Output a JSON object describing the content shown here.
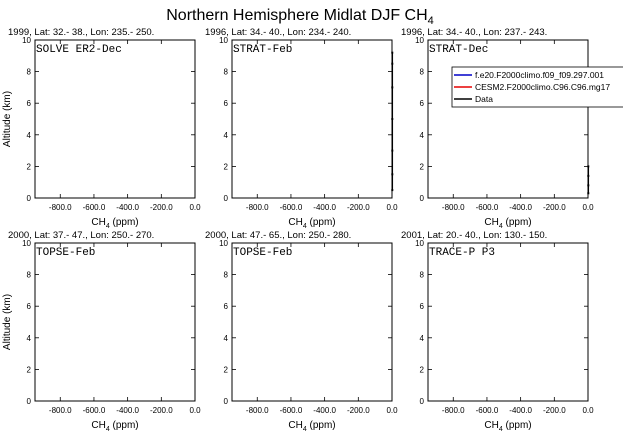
{
  "title": {
    "main": "Northern Hemisphere Midlat DJF CH",
    "sub": "4"
  },
  "legend": {
    "entries": [
      {
        "label": "f.e20.F2000climo.f09_f09.297.001",
        "color": "#0000c8"
      },
      {
        "label": "CESM2.F2000climo.C96.C96.mg17",
        "color": "#e60000"
      },
      {
        "label": "Data",
        "color": "#000000"
      }
    ]
  },
  "chart_data": [
    {
      "type": "line",
      "title": "1999, Lat: 32.- 38., Lon: 235.- 250.",
      "panel_label": "SOLVE ER2-Dec",
      "xlabel": "CH4 (ppm)",
      "ylabel": "Altitude (km)",
      "xlim": [
        -950,
        0
      ],
      "ylim": [
        0,
        10
      ],
      "xticks": [
        -800,
        -600,
        -400,
        -200,
        0
      ],
      "xtick_labels": [
        "-800.0",
        "-600.0",
        "-400.0",
        "-200.0",
        "0.0"
      ],
      "yticks": [
        0,
        2,
        4,
        6,
        8,
        10
      ],
      "ytick_labels": [
        "0",
        "2",
        "4",
        "6",
        "8",
        "10"
      ],
      "series": []
    },
    {
      "type": "line",
      "title": "1996, Lat: 34.- 40., Lon: 234.- 240.",
      "panel_label": "STRAT-Feb",
      "xlabel": "CH4 (ppm)",
      "ylabel": "",
      "xlim": [
        -950,
        0
      ],
      "ylim": [
        0,
        10
      ],
      "xticks": [
        -800,
        -600,
        -400,
        -200,
        0
      ],
      "xtick_labels": [
        "-800.0",
        "-600.0",
        "-400.0",
        "-200.0",
        "0.0"
      ],
      "yticks": [
        0,
        2,
        4,
        6,
        8,
        10
      ],
      "ytick_labels": [
        "0",
        "2",
        "4",
        "6",
        "8",
        "10"
      ],
      "series": [
        {
          "name": "Data",
          "color": "#000000",
          "x": [
            1.7,
            1.7,
            1.7,
            1.65,
            1.6,
            1.55,
            1.5
          ],
          "y": [
            0.5,
            1.5,
            3,
            5,
            7,
            8.5,
            9.2
          ]
        }
      ]
    },
    {
      "type": "line",
      "title": "1996, Lat: 34.- 40., Lon: 237.- 243.",
      "panel_label": "STRAT-Dec",
      "xlabel": "CH4 (ppm)",
      "ylabel": "",
      "xlim": [
        -950,
        0
      ],
      "ylim": [
        0,
        10
      ],
      "xticks": [
        -800,
        -600,
        -400,
        -200,
        0
      ],
      "xtick_labels": [
        "-800.0",
        "-600.0",
        "-400.0",
        "-200.0",
        "0.0"
      ],
      "yticks": [
        0,
        2,
        4,
        6,
        8,
        10
      ],
      "ytick_labels": [
        "0",
        "2",
        "4",
        "6",
        "8",
        "10"
      ],
      "series": [
        {
          "name": "Data",
          "color": "#000000",
          "x": [
            1.7,
            1.7,
            1.7,
            1.7
          ],
          "y": [
            0.3,
            0.8,
            1.4,
            2.0
          ]
        }
      ]
    },
    {
      "type": "line",
      "title": "2000, Lat: 37.- 47., Lon: 250.- 270.",
      "panel_label": "TOPSE-Feb",
      "xlabel": "CH4 (ppm)",
      "ylabel": "Altitude (km)",
      "xlim": [
        -950,
        0
      ],
      "ylim": [
        0,
        10
      ],
      "xticks": [
        -800,
        -600,
        -400,
        -200,
        0
      ],
      "xtick_labels": [
        "-800.0",
        "-600.0",
        "-400.0",
        "-200.0",
        "0.0"
      ],
      "yticks": [
        0,
        2,
        4,
        6,
        8,
        10
      ],
      "ytick_labels": [
        "0",
        "2",
        "4",
        "6",
        "8",
        "10"
      ],
      "series": []
    },
    {
      "type": "line",
      "title": "2000, Lat: 47.- 65., Lon: 250.- 280.",
      "panel_label": "TOPSE-Feb",
      "xlabel": "CH4 (ppm)",
      "ylabel": "",
      "xlim": [
        -950,
        0
      ],
      "ylim": [
        0,
        10
      ],
      "xticks": [
        -800,
        -600,
        -400,
        -200,
        0
      ],
      "xtick_labels": [
        "-800.0",
        "-600.0",
        "-400.0",
        "-200.0",
        "0.0"
      ],
      "yticks": [
        0,
        2,
        4,
        6,
        8,
        10
      ],
      "ytick_labels": [
        "0",
        "2",
        "4",
        "6",
        "8",
        "10"
      ],
      "series": []
    },
    {
      "type": "line",
      "title": "2001, Lat: 20.- 40., Lon: 130.- 150.",
      "panel_label": "TRACE-P P3",
      "xlabel": "CH4 (ppm)",
      "ylabel": "",
      "xlim": [
        -950,
        0
      ],
      "ylim": [
        0,
        10
      ],
      "xticks": [
        -800,
        -600,
        -400,
        -200,
        0
      ],
      "xtick_labels": [
        "-800.0",
        "-600.0",
        "-400.0",
        "-200.0",
        "0.0"
      ],
      "yticks": [
        0,
        2,
        4,
        6,
        8,
        10
      ],
      "ytick_labels": [
        "0",
        "2",
        "4",
        "6",
        "8",
        "10"
      ],
      "series": []
    }
  ]
}
